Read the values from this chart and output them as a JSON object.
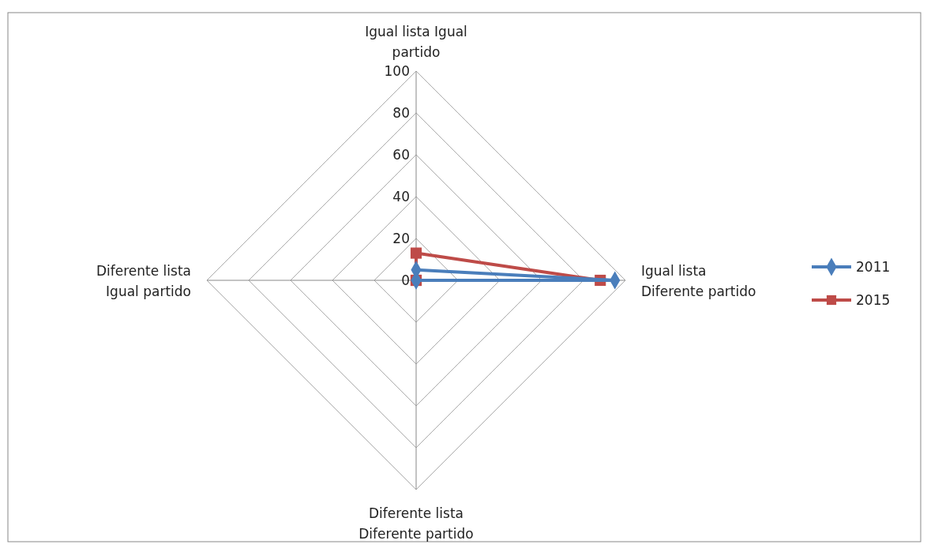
{
  "chart_data": {
    "type": "radar",
    "categories": [
      "Igual lista Igual partido",
      "Igual lista Diferente partido",
      "Diferente lista Diferente partido",
      "Diferente lista Igual partido"
    ],
    "series": [
      {
        "name": "2011",
        "color": "#4a7ebb",
        "values": [
          5,
          95,
          0,
          0
        ]
      },
      {
        "name": "2015",
        "color": "#be4b48",
        "values": [
          13,
          88,
          0,
          0
        ]
      }
    ],
    "ylim": [
      0,
      100
    ],
    "yticks": [
      0,
      20,
      40,
      60,
      80,
      100
    ],
    "legend": "right",
    "marker": "diamond",
    "grid": true
  }
}
